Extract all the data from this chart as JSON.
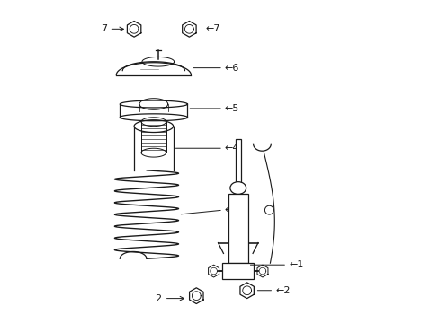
{
  "bg_color": "#ffffff",
  "line_color": "#1a1a1a",
  "fig_width": 4.89,
  "fig_height": 3.6,
  "dpi": 100,
  "font_size": 8.0,
  "lw": 0.9
}
